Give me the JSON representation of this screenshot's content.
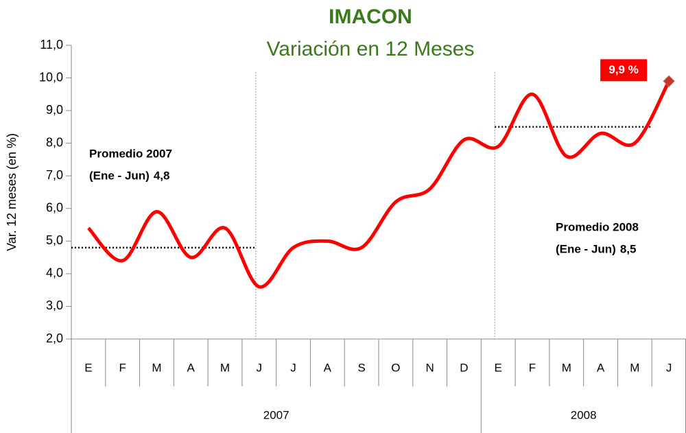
{
  "chart_data": {
    "type": "line",
    "title": "IMACON",
    "subtitle": "Variación en 12 Meses",
    "y_label": "Var. 12 meses  (en %)",
    "categories": [
      "E",
      "F",
      "M",
      "A",
      "M",
      "J",
      "J",
      "A",
      "S",
      "O",
      "N",
      "D",
      "E",
      "F",
      "M",
      "A",
      "M",
      "J"
    ],
    "years": [
      "2007",
      "2007",
      "2007",
      "2007",
      "2007",
      "2007",
      "2007",
      "2007",
      "2007",
      "2007",
      "2007",
      "2007",
      "2008",
      "2008",
      "2008",
      "2008",
      "2008",
      "2008"
    ],
    "series": [
      {
        "color": "#ff0000",
        "values": [
          5.4,
          4.4,
          5.9,
          4.5,
          5.4,
          3.6,
          4.8,
          5.0,
          4.8,
          6.2,
          6.6,
          8.1,
          7.9,
          9.5,
          7.6,
          8.3,
          8.0,
          9.9
        ],
        "value_labels": [
          null,
          null,
          null,
          null,
          null,
          null,
          null,
          null,
          null,
          null,
          null,
          null,
          null,
          null,
          null,
          null,
          null,
          "9,9 %"
        ]
      }
    ],
    "averages": [
      {
        "title": "Promedio 2007",
        "period": "(Ene - Jun)",
        "value": 4.8,
        "label": "4,8"
      },
      {
        "title": "Promedio 2008",
        "period": "(Ene - Jun)",
        "value": 8.5,
        "label": "8,5"
      }
    ],
    "ylim": [
      2,
      11
    ],
    "yticks": [
      {
        "value": 2,
        "label": "2,0"
      },
      {
        "value": 3,
        "label": "3,0"
      },
      {
        "value": 4,
        "label": "4,0"
      },
      {
        "value": 5,
        "label": "5,0"
      },
      {
        "value": 6,
        "label": "6,0"
      },
      {
        "value": 7,
        "label": "7,0"
      },
      {
        "value": 8,
        "label": "8,0"
      },
      {
        "value": 9,
        "label": "9,0"
      },
      {
        "value": 10,
        "label": "10,0"
      },
      {
        "value": 11,
        "label": "11,0"
      }
    ]
  }
}
